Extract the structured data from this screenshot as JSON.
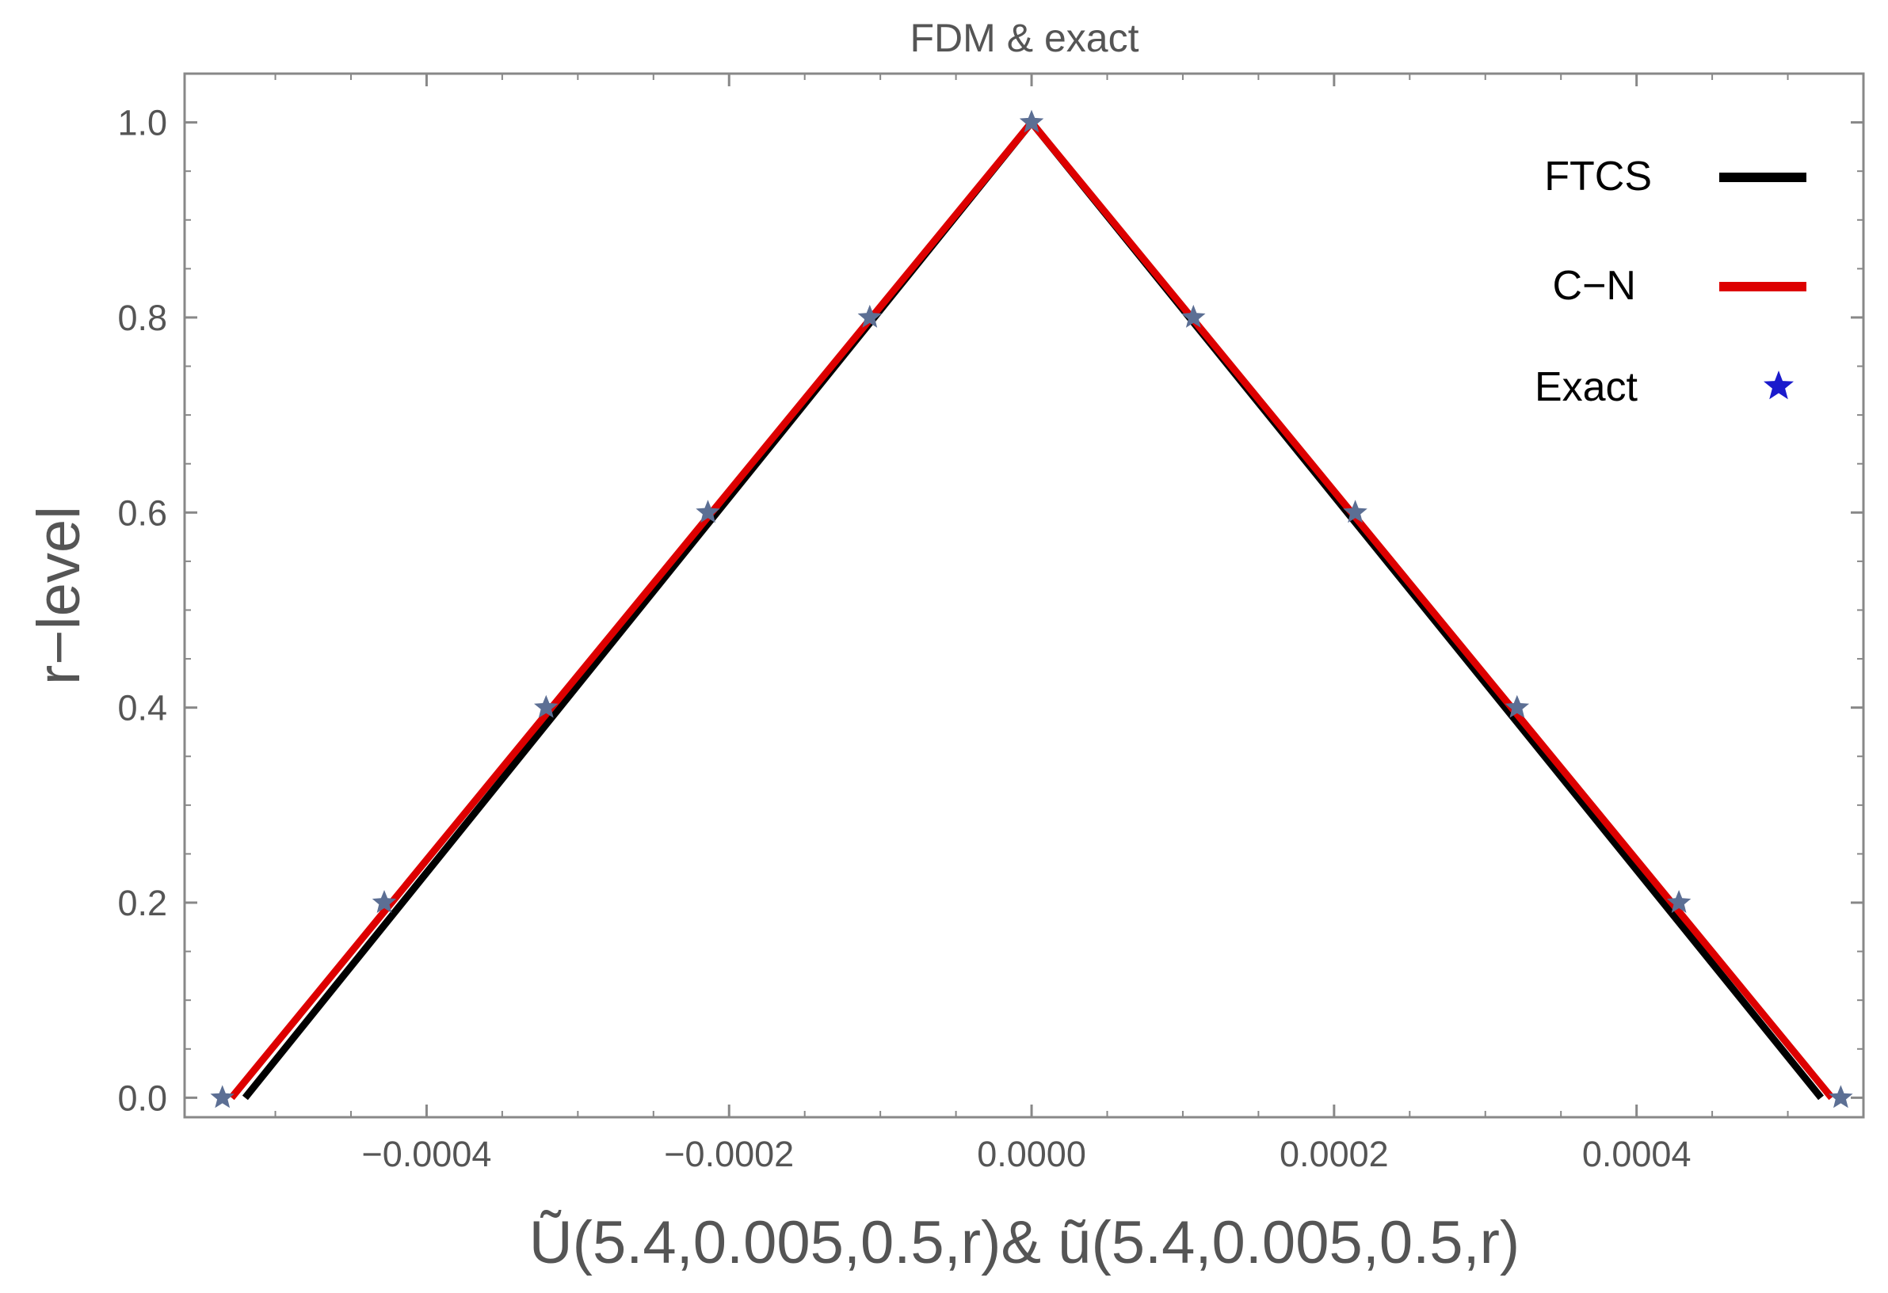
{
  "chart_data": {
    "type": "line",
    "title": "FDM & exact",
    "xlabel": "Ũ(5.4,0.005,0.5,r)& ũ(5.4,0.005,0.5,r)",
    "ylabel": "r−level",
    "xlim": [
      -0.00056,
      0.00055
    ],
    "ylim": [
      -0.02,
      1.05
    ],
    "x_ticks": [
      -0.0004,
      -0.0002,
      0.0,
      0.0002,
      0.0004
    ],
    "x_tick_labels": [
      "−0.0004",
      "−0.0002",
      "0.0000",
      "0.0002",
      "0.0004"
    ],
    "y_ticks": [
      0.0,
      0.2,
      0.4,
      0.6,
      0.8,
      1.0
    ],
    "y_tick_labels": [
      "0.0",
      "0.2",
      "0.4",
      "0.6",
      "0.8",
      "1.0"
    ],
    "legend_position": "top-right",
    "series": [
      {
        "name": "FTCS",
        "style": "line",
        "color": "#000000",
        "points": [
          [
            -0.00052,
            0.0
          ],
          [
            0.0,
            1.0
          ],
          [
            0.000522,
            0.0
          ]
        ]
      },
      {
        "name": "C−N",
        "style": "line",
        "color": "#dd0000",
        "points": [
          [
            -0.000529,
            0.0
          ],
          [
            0.0,
            1.0
          ],
          [
            0.000529,
            0.0
          ]
        ]
      },
      {
        "name": "Exact",
        "style": "marker",
        "color": "#5c6f94",
        "legend_color": "#1a1acc",
        "points": [
          [
            -0.000535,
            0.0
          ],
          [
            -0.000428,
            0.2
          ],
          [
            -0.000321,
            0.4
          ],
          [
            -0.000214,
            0.6
          ],
          [
            -0.000107,
            0.8
          ],
          [
            0.0,
            1.0
          ],
          [
            0.000107,
            0.8
          ],
          [
            0.000214,
            0.6
          ],
          [
            0.000321,
            0.4
          ],
          [
            0.000428,
            0.2
          ],
          [
            0.000535,
            0.0
          ]
        ]
      }
    ]
  }
}
